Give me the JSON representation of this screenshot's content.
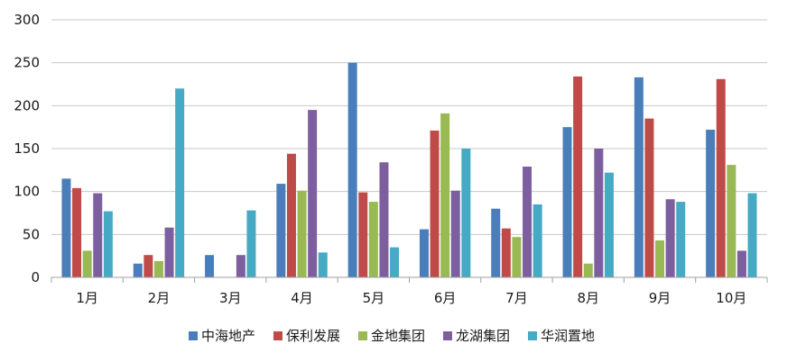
{
  "chart_data": {
    "type": "bar",
    "title": "",
    "xlabel": "",
    "ylabel": "",
    "ylim": [
      0,
      300
    ],
    "yticks": [
      0,
      50,
      100,
      150,
      200,
      250,
      300
    ],
    "grid": true,
    "legend_position": "bottom",
    "categories": [
      "1月",
      "2月",
      "3月",
      "4月",
      "5月",
      "6月",
      "7月",
      "8月",
      "9月",
      "10月"
    ],
    "series": [
      {
        "name": "中海地产",
        "color": "#4a7ebb",
        "values": [
          115,
          16,
          26,
          109,
          250,
          56,
          80,
          175,
          233,
          172
        ]
      },
      {
        "name": "保利发展",
        "color": "#be4b48",
        "values": [
          104,
          26,
          0,
          144,
          99,
          171,
          57,
          234,
          185,
          231
        ]
      },
      {
        "name": "金地集团",
        "color": "#98b954",
        "values": [
          31,
          19,
          0,
          101,
          88,
          191,
          47,
          16,
          43,
          131
        ]
      },
      {
        "name": "龙湖集团",
        "color": "#7d5fa0",
        "values": [
          98,
          58,
          26,
          195,
          134,
          101,
          129,
          150,
          91,
          31
        ]
      },
      {
        "name": "华润置地",
        "color": "#46aac5",
        "values": [
          77,
          220,
          78,
          29,
          35,
          150,
          85,
          122,
          88,
          98
        ]
      }
    ]
  }
}
